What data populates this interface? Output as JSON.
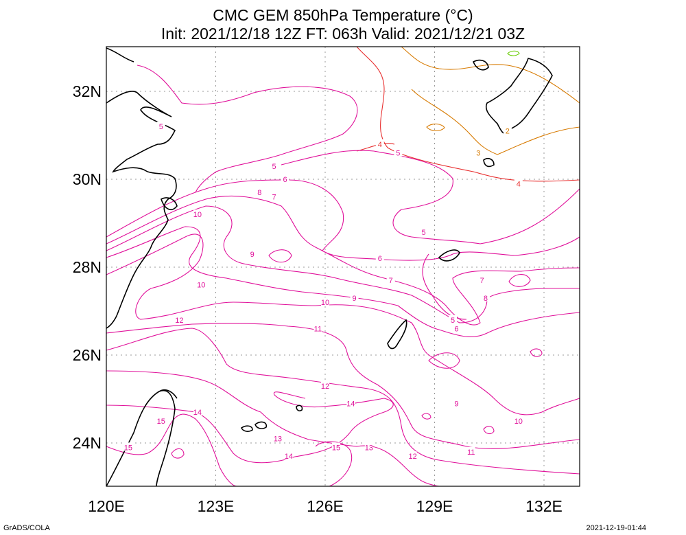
{
  "title": "CMC GEM 850hPa Temperature (°C)",
  "subtitle": "Init: 2021/12/18 12Z  FT: 063h  Valid: 2021/12/21 03Z",
  "x_ticks": [
    "120E",
    "123E",
    "126E",
    "129E",
    "132E"
  ],
  "y_ticks": [
    "32N",
    "30N",
    "28N",
    "26N",
    "24N"
  ],
  "footer_left": "GrADS/COLA",
  "footer_right": "2021-12-19-01:44",
  "colors": {
    "contour_warm": "#e0109a",
    "contour_mid": "#e83030",
    "contour_cool": "#d77a00",
    "contour_cold": "#66cc00",
    "coastline": "#000000",
    "grid": "#999999"
  },
  "contour_labels": [
    {
      "text": "2",
      "lon": 131.0,
      "lat": 31.1
    },
    {
      "text": "3",
      "lon": 130.2,
      "lat": 30.6
    },
    {
      "text": "4",
      "lon": 127.5,
      "lat": 30.8
    },
    {
      "text": "4",
      "lon": 131.3,
      "lat": 29.9
    },
    {
      "text": "5",
      "lon": 121.5,
      "lat": 31.2
    },
    {
      "text": "5",
      "lon": 124.6,
      "lat": 30.3
    },
    {
      "text": "5",
      "lon": 128.0,
      "lat": 30.6
    },
    {
      "text": "5",
      "lon": 128.7,
      "lat": 28.8
    },
    {
      "text": "6",
      "lon": 124.9,
      "lat": 30.0
    },
    {
      "text": "6",
      "lon": 127.5,
      "lat": 28.2
    },
    {
      "text": "6",
      "lon": 129.6,
      "lat": 26.6
    },
    {
      "text": "7",
      "lon": 124.6,
      "lat": 29.6
    },
    {
      "text": "7",
      "lon": 127.8,
      "lat": 27.7
    },
    {
      "text": "7",
      "lon": 130.3,
      "lat": 27.7
    },
    {
      "text": "5",
      "lon": 129.5,
      "lat": 26.8
    },
    {
      "text": "8",
      "lon": 124.2,
      "lat": 29.7
    },
    {
      "text": "8",
      "lon": 130.4,
      "lat": 27.3
    },
    {
      "text": "9",
      "lon": 124.0,
      "lat": 28.3
    },
    {
      "text": "9",
      "lon": 126.8,
      "lat": 27.3
    },
    {
      "text": "9",
      "lon": 129.6,
      "lat": 24.9
    },
    {
      "text": "10",
      "lon": 122.5,
      "lat": 29.2
    },
    {
      "text": "10",
      "lon": 122.6,
      "lat": 27.6
    },
    {
      "text": "10",
      "lon": 126.0,
      "lat": 27.2
    },
    {
      "text": "10",
      "lon": 131.3,
      "lat": 24.5
    },
    {
      "text": "11",
      "lon": 125.8,
      "lat": 26.6
    },
    {
      "text": "11",
      "lon": 130.0,
      "lat": 23.8
    },
    {
      "text": "12",
      "lon": 122.0,
      "lat": 26.8
    },
    {
      "text": "12",
      "lon": 126.0,
      "lat": 25.3
    },
    {
      "text": "12",
      "lon": 128.4,
      "lat": 23.7
    },
    {
      "text": "13",
      "lon": 124.7,
      "lat": 24.1
    },
    {
      "text": "13",
      "lon": 127.2,
      "lat": 23.9
    },
    {
      "text": "14",
      "lon": 122.5,
      "lat": 24.7
    },
    {
      "text": "14",
      "lon": 126.7,
      "lat": 24.9
    },
    {
      "text": "14",
      "lon": 125.0,
      "lat": 23.7
    },
    {
      "text": "15",
      "lon": 121.5,
      "lat": 24.5
    },
    {
      "text": "15",
      "lon": 120.6,
      "lat": 23.9
    },
    {
      "text": "15",
      "lon": 126.3,
      "lat": 23.9
    }
  ]
}
